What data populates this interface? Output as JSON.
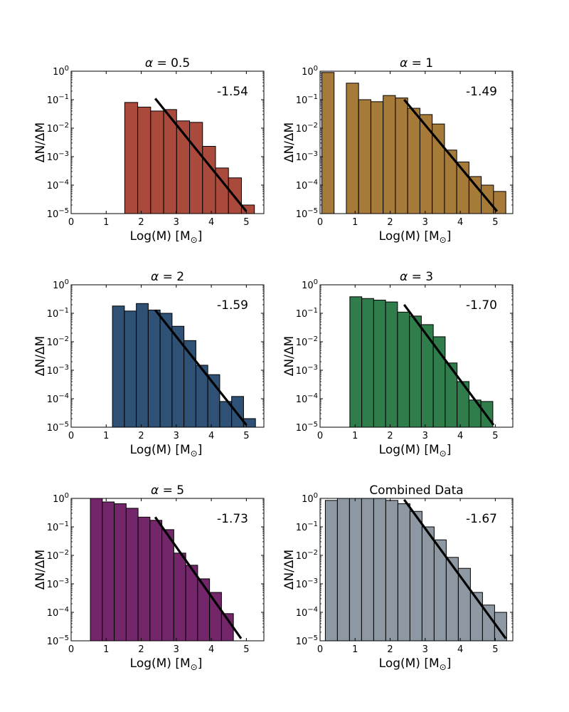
{
  "figure": {
    "panel_count": 6
  },
  "chart_data": [
    {
      "type": "bar",
      "panel": "alpha-0-5",
      "title_symbol": "α",
      "title_value": "= 0.5",
      "xlabel": "Log(M) [M",
      "xlabel_sub": "⊙",
      "xlabel_close": "]",
      "ylabel": "ΔN/ΔM",
      "yscale": "log",
      "xlim": [
        0,
        5.5
      ],
      "ylim_log10": [
        -5,
        0
      ],
      "xticks": [
        "0",
        "1",
        "2",
        "3",
        "4",
        "5"
      ],
      "yticks": [
        {
          "base": "10",
          "exp": "0"
        },
        {
          "base": "10",
          "exp": "−1"
        },
        {
          "base": "10",
          "exp": "−2"
        },
        {
          "base": "10",
          "exp": "−3"
        },
        {
          "base": "10",
          "exp": "−4"
        },
        {
          "base": "10",
          "exp": "−5"
        }
      ],
      "bin_width": 0.37,
      "bin_starts": [
        1.53,
        1.9,
        2.27,
        2.64,
        3.01,
        3.38,
        3.75,
        4.12,
        4.49,
        4.86
      ],
      "values": [
        0.08,
        0.055,
        0.04,
        0.045,
        0.018,
        0.016,
        0.0023,
        0.0004,
        0.00018,
        2e-05
      ],
      "fit_line": {
        "x": [
          2.4,
          5.0
        ],
        "y": [
          0.11,
          1.2e-05
        ]
      },
      "slope_label": "-1.54",
      "color": "#A94A3C"
    },
    {
      "type": "bar",
      "panel": "alpha-1",
      "title_symbol": "α",
      "title_value": "= 1",
      "xlabel": "Log(M) [M",
      "xlabel_sub": "⊙",
      "xlabel_close": "]",
      "ylabel": "ΔN/ΔM",
      "yscale": "log",
      "xlim": [
        0,
        5.5
      ],
      "ylim_log10": [
        -5,
        0
      ],
      "xticks": [
        "0",
        "1",
        "2",
        "3",
        "4",
        "5"
      ],
      "yticks": [
        {
          "base": "10",
          "exp": "0"
        },
        {
          "base": "10",
          "exp": "−1"
        },
        {
          "base": "10",
          "exp": "−2"
        },
        {
          "base": "10",
          "exp": "−3"
        },
        {
          "base": "10",
          "exp": "−4"
        },
        {
          "base": "10",
          "exp": "−5"
        }
      ],
      "bin_width": 0.35,
      "bin_starts": [
        0.05,
        0.4,
        0.75,
        1.1,
        1.45,
        1.8,
        2.15,
        2.5,
        2.85,
        3.2,
        3.55,
        3.9,
        4.25,
        4.6,
        4.95
      ],
      "values": [
        0.9,
        1e-05,
        0.38,
        0.1,
        0.085,
        0.14,
        0.115,
        0.05,
        0.03,
        0.014,
        0.0017,
        0.00065,
        0.0002,
        0.0001,
        6e-05
      ],
      "fit_line": {
        "x": [
          2.4,
          5.05
        ],
        "y": [
          0.1,
          1.2e-05
        ]
      },
      "slope_label": "-1.49",
      "color": "#A67A38"
    },
    {
      "type": "bar",
      "panel": "alpha-2",
      "title_symbol": "α",
      "title_value": "= 2",
      "xlabel": "Log(M) [M",
      "xlabel_sub": "⊙",
      "xlabel_close": "]",
      "ylabel": "ΔN/ΔM",
      "yscale": "log",
      "xlim": [
        0,
        5.5
      ],
      "ylim_log10": [
        -5,
        0
      ],
      "xticks": [
        "0",
        "1",
        "2",
        "3",
        "4",
        "5"
      ],
      "yticks": [
        {
          "base": "10",
          "exp": "0"
        },
        {
          "base": "10",
          "exp": "−1"
        },
        {
          "base": "10",
          "exp": "−2"
        },
        {
          "base": "10",
          "exp": "−3"
        },
        {
          "base": "10",
          "exp": "−4"
        },
        {
          "base": "10",
          "exp": "−5"
        }
      ],
      "bin_width": 0.34,
      "bin_starts": [
        1.18,
        1.52,
        1.86,
        2.2,
        2.54,
        2.88,
        3.22,
        3.56,
        3.9,
        4.24,
        4.58,
        4.92
      ],
      "values": [
        0.18,
        0.12,
        0.22,
        0.13,
        0.1,
        0.035,
        0.011,
        0.0015,
        0.0007,
        8e-05,
        0.00012,
        2e-05
      ],
      "fit_line": {
        "x": [
          2.4,
          5.0
        ],
        "y": [
          0.13,
          1.2e-05
        ]
      },
      "slope_label": "-1.59",
      "color": "#2E5175"
    },
    {
      "type": "bar",
      "panel": "alpha-3",
      "title_symbol": "α",
      "title_value": "= 3",
      "xlabel": "Log(M) [M",
      "xlabel_sub": "⊙",
      "xlabel_close": "]",
      "ylabel": "ΔN/ΔM",
      "yscale": "log",
      "xlim": [
        0,
        5.5
      ],
      "ylim_log10": [
        -5,
        0
      ],
      "xticks": [
        "0",
        "1",
        "2",
        "3",
        "4",
        "5"
      ],
      "yticks": [
        {
          "base": "10",
          "exp": "0"
        },
        {
          "base": "10",
          "exp": "−1"
        },
        {
          "base": "10",
          "exp": "−2"
        },
        {
          "base": "10",
          "exp": "−3"
        },
        {
          "base": "10",
          "exp": "−4"
        },
        {
          "base": "10",
          "exp": "−5"
        }
      ],
      "bin_width": 0.34,
      "bin_starts": [
        0.85,
        1.19,
        1.53,
        1.87,
        2.21,
        2.55,
        2.89,
        3.23,
        3.57,
        3.91,
        4.25,
        4.59
      ],
      "values": [
        0.38,
        0.33,
        0.29,
        0.25,
        0.11,
        0.08,
        0.04,
        0.015,
        0.0018,
        0.0004,
        9e-05,
        8e-05
      ],
      "fit_line": {
        "x": [
          2.4,
          4.95
        ],
        "y": [
          0.2,
          1.2e-05
        ]
      },
      "slope_label": "-1.70",
      "color": "#2F7D4B"
    },
    {
      "type": "bar",
      "panel": "alpha-5",
      "title_symbol": "α",
      "title_value": "= 5",
      "xlabel": "Log(M) [M",
      "xlabel_sub": "⊙",
      "xlabel_close": "]",
      "ylabel": "ΔN/ΔM",
      "yscale": "log",
      "xlim": [
        0,
        5.5
      ],
      "ylim_log10": [
        -5,
        0
      ],
      "xticks": [
        "0",
        "1",
        "2",
        "3",
        "4",
        "5"
      ],
      "yticks": [
        {
          "base": "10",
          "exp": "0"
        },
        {
          "base": "10",
          "exp": "−1"
        },
        {
          "base": "10",
          "exp": "−2"
        },
        {
          "base": "10",
          "exp": "−3"
        },
        {
          "base": "10",
          "exp": "−4"
        },
        {
          "base": "10",
          "exp": "−5"
        }
      ],
      "bin_width": 0.34,
      "bin_starts": [
        0.55,
        0.89,
        1.23,
        1.57,
        1.91,
        2.25,
        2.59,
        2.93,
        3.27,
        3.61,
        3.95,
        4.29
      ],
      "values": [
        1.0,
        0.75,
        0.65,
        0.45,
        0.22,
        0.17,
        0.08,
        0.012,
        0.0045,
        0.0015,
        0.0005,
        9e-05
      ],
      "fit_line": {
        "x": [
          2.4,
          4.85
        ],
        "y": [
          0.22,
          1.2e-05
        ]
      },
      "slope_label": "-1.73",
      "color": "#74266B"
    },
    {
      "type": "bar",
      "panel": "combined",
      "title_text": "Combined Data",
      "xlabel": "Log(M) [M",
      "xlabel_sub": "⊙",
      "xlabel_close": "]",
      "ylabel": "ΔN/ΔM",
      "yscale": "log",
      "xlim": [
        0,
        5.5
      ],
      "ylim_log10": [
        -5,
        0
      ],
      "xticks": [
        "0",
        "1",
        "2",
        "3",
        "4",
        "5"
      ],
      "yticks": [
        {
          "base": "10",
          "exp": "0"
        },
        {
          "base": "10",
          "exp": "−1"
        },
        {
          "base": "10",
          "exp": "−2"
        },
        {
          "base": "10",
          "exp": "−3"
        },
        {
          "base": "10",
          "exp": "−4"
        },
        {
          "base": "10",
          "exp": "−5"
        }
      ],
      "bin_width": 0.345,
      "bin_starts": [
        0.15,
        0.495,
        0.84,
        1.185,
        1.53,
        1.875,
        2.22,
        2.565,
        2.91,
        3.255,
        3.6,
        3.945,
        4.29,
        4.635,
        4.98
      ],
      "values": [
        0.85,
        1.0,
        1.0,
        1.0,
        1.0,
        0.85,
        0.65,
        0.35,
        0.1,
        0.035,
        0.0085,
        0.0035,
        0.0005,
        0.00018,
        0.0001
      ],
      "fit_line": {
        "x": [
          2.4,
          5.3
        ],
        "y": [
          0.9,
          1.2e-05
        ]
      },
      "slope_label": "-1.67",
      "color": "#8E98A3"
    }
  ]
}
